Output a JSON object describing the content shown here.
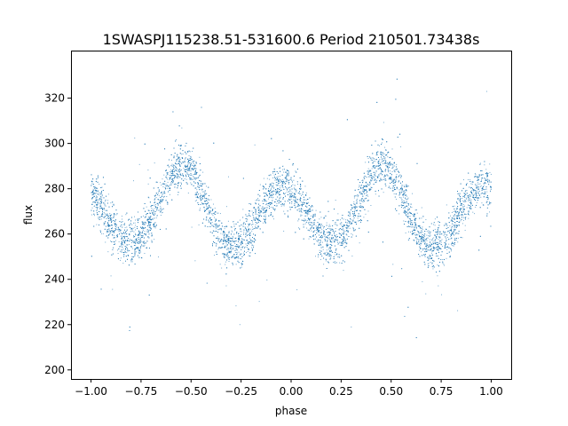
{
  "chart_data": {
    "type": "scatter",
    "title": "1SWASPJ115238.51-531600.6 Period 210501.73438s",
    "xlabel": "phase",
    "ylabel": "flux",
    "xlim": [
      -1.1,
      1.1
    ],
    "ylim": [
      196,
      341
    ],
    "xticks": [
      -1.0,
      -0.75,
      -0.5,
      -0.25,
      0.0,
      0.25,
      0.5,
      0.75,
      1.0
    ],
    "xtick_labels": [
      "−1.00",
      "−0.75",
      "−0.50",
      "−0.25",
      "0.00",
      "0.25",
      "0.50",
      "0.75",
      "1.00"
    ],
    "yticks": [
      200,
      220,
      240,
      260,
      280,
      300,
      320
    ],
    "ytick_labels": [
      "200",
      "220",
      "240",
      "260",
      "280",
      "300",
      "320"
    ],
    "grid": false,
    "marker_color": "#1f77b4",
    "series": [
      {
        "name": "",
        "description": "phase-folded light curve, phase repeated from -1 to 1",
        "trend": {
          "phase": [
            -1.0,
            -0.95,
            -0.9,
            -0.85,
            -0.8,
            -0.75,
            -0.7,
            -0.65,
            -0.6,
            -0.55,
            -0.5,
            -0.45,
            -0.4,
            -0.35,
            -0.3,
            -0.25,
            -0.2,
            -0.15,
            -0.1,
            -0.05,
            0.0,
            0.05,
            0.1,
            0.15,
            0.2,
            0.25,
            0.3,
            0.35,
            0.4,
            0.45,
            0.5,
            0.55,
            0.6,
            0.65,
            0.7,
            0.75,
            0.8,
            0.85,
            0.9,
            0.95,
            1.0
          ],
          "flux": [
            278,
            272,
            264,
            258,
            256,
            259,
            266,
            276,
            286,
            291,
            288,
            278,
            266,
            258,
            254,
            255,
            261,
            270,
            278,
            281,
            280,
            274,
            265,
            258,
            256,
            259,
            266,
            276,
            286,
            291,
            288,
            278,
            266,
            258,
            254,
            255,
            261,
            270,
            278,
            281,
            280
          ]
        },
        "scatter_sd": 5,
        "n_points": 9000
      }
    ]
  }
}
